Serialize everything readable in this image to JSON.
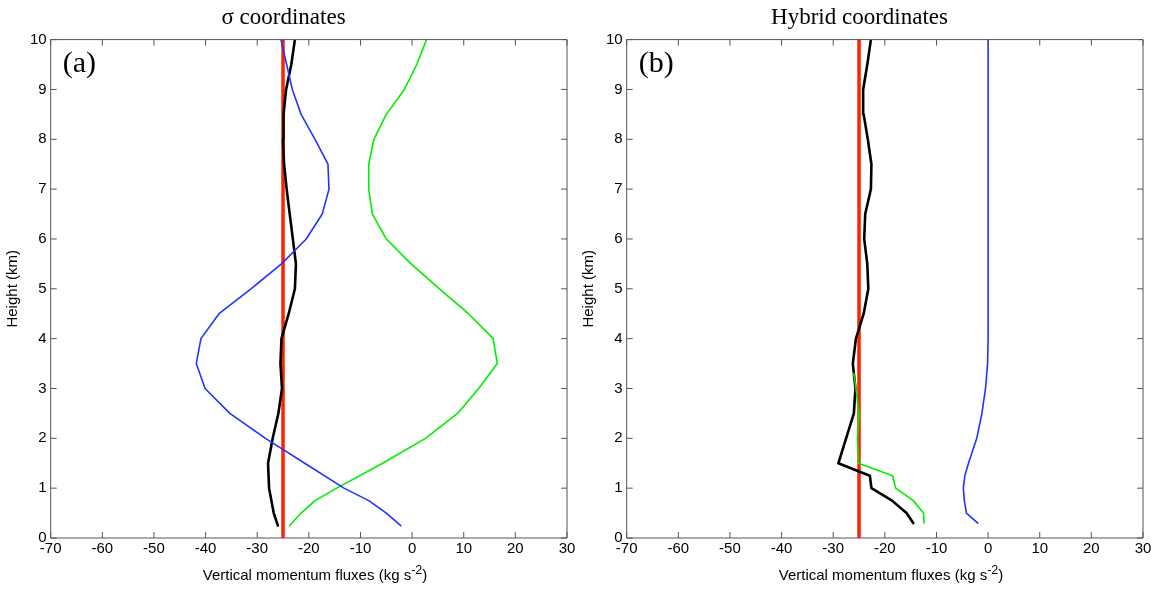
{
  "chart_data": [
    {
      "type": "line",
      "title": "σ coordinates",
      "xlabel": "Vertical momentum fluxes (kg s$^{-2}$)",
      "ylabel": "Height (km)",
      "xlim": [
        -70,
        30
      ],
      "xticks": [
        -70,
        -60,
        -50,
        -40,
        -30,
        -20,
        -10,
        0,
        10,
        20,
        30
      ],
      "ylim": [
        0,
        10
      ],
      "yticks": [
        0,
        1,
        2,
        3,
        4,
        5,
        6,
        7,
        8,
        9,
        10
      ],
      "grid": false,
      "annotations": [
        "(a)"
      ],
      "ref_lines": [
        {
          "axis": "x",
          "value": -25,
          "color": "#ff2200"
        }
      ],
      "series": [
        {
          "color": "#2233ff",
          "x": [
            -2.2,
            -5.0,
            -8.4,
            -13.2,
            -20.8,
            -28.4,
            -35.3,
            -40.1,
            -41.8,
            -40.9,
            -37.4,
            -31.2,
            -25.3,
            -20.5,
            -17.4,
            -16.1,
            -16.3,
            -18.8,
            -21.5,
            -23.2,
            -24.3,
            -25.4
          ],
          "values": [
            0.25,
            0.5,
            0.75,
            1,
            1.5,
            2,
            2.5,
            3,
            3.5,
            4,
            4.5,
            5,
            5.5,
            6,
            6.5,
            7,
            7.5,
            8,
            8.5,
            9,
            9.5,
            10
          ]
        },
        {
          "color": "#00ee00",
          "x": [
            -23.7,
            -21.5,
            -18.8,
            -14.6,
            -5.7,
            2.6,
            8.8,
            12.9,
            16.5,
            15.7,
            10.9,
            5.3,
            -0.2,
            -5.0,
            -7.7,
            -8.4,
            -8.4,
            -7.4,
            -5.0,
            -1.5,
            0.9,
            2.8
          ],
          "values": [
            0.25,
            0.5,
            0.75,
            1,
            1.5,
            2,
            2.5,
            3,
            3.5,
            4,
            4.5,
            5,
            5.5,
            6,
            6.5,
            7,
            7.5,
            8,
            8.5,
            9,
            9.5,
            10
          ]
        },
        {
          "color": "#000000",
          "x": [
            -26.0,
            -26.8,
            -27.7,
            -27.9,
            -27.0,
            -25.9,
            -25.2,
            -25.5,
            -25.3,
            -23.9,
            -22.7,
            -22.5,
            -23.1,
            -23.7,
            -24.3,
            -24.8,
            -25.0,
            -24.9,
            -24.4,
            -23.4,
            -22.7
          ],
          "values": [
            0.25,
            0.5,
            1,
            1.5,
            2,
            2.5,
            3,
            3.5,
            4,
            4.5,
            5,
            5.5,
            6,
            6.5,
            7,
            7.5,
            8,
            8.5,
            9,
            9.5,
            10
          ]
        }
      ]
    },
    {
      "type": "line",
      "title": "Hybrid coordinates",
      "xlabel": "Vertical momentum fluxes (kg s$^{-2}$)",
      "ylabel": "Height (km)",
      "xlim": [
        -70,
        30
      ],
      "xticks": [
        -70,
        -60,
        -50,
        -40,
        -30,
        -20,
        -10,
        0,
        10,
        20,
        30
      ],
      "ylim": [
        0,
        10
      ],
      "yticks": [
        0,
        1,
        2,
        3,
        4,
        5,
        6,
        7,
        8,
        9,
        10
      ],
      "grid": false,
      "annotations": [
        "(b)"
      ],
      "ref_lines": [
        {
          "axis": "x",
          "value": -25,
          "color": "#ff2200"
        }
      ],
      "series": [
        {
          "color": "#2233ff",
          "x": [
            -2.0,
            -4.2,
            -4.6,
            -4.8,
            -4.5,
            -3.8,
            -2.2,
            -1.2,
            -0.5,
            -0.1,
            0,
            0
          ],
          "values": [
            0.3,
            0.5,
            0.75,
            1,
            1.25,
            1.5,
            2,
            2.5,
            3,
            3.5,
            4,
            10
          ]
        },
        {
          "color": "#00ee00",
          "x": [
            -12.4,
            -12.5,
            -14.5,
            -17.9,
            -18.5,
            -25.1,
            -25.3,
            -25.0,
            -25.6,
            -26.0
          ],
          "values": [
            0.3,
            0.5,
            0.75,
            1,
            1.25,
            1.5,
            2,
            2.5,
            3,
            3.3
          ]
        },
        {
          "color": "#000000",
          "x": [
            -14.5,
            -15.8,
            -18.6,
            -22.6,
            -22.9,
            -29.0,
            -27.5,
            -26.0,
            -25.7,
            -26.2,
            -25.6,
            -24.1,
            -23.2,
            -23.4,
            -24.0,
            -23.8,
            -22.7,
            -22.6,
            -23.3,
            -24.1,
            -24.2,
            -23.4,
            -22.7
          ],
          "values": [
            0.3,
            0.5,
            0.75,
            1,
            1.25,
            1.5,
            2,
            2.5,
            3,
            3.5,
            4,
            4.5,
            5,
            5.5,
            6,
            6.5,
            7,
            7.5,
            8,
            8.5,
            9,
            9.5,
            10
          ]
        }
      ]
    }
  ]
}
